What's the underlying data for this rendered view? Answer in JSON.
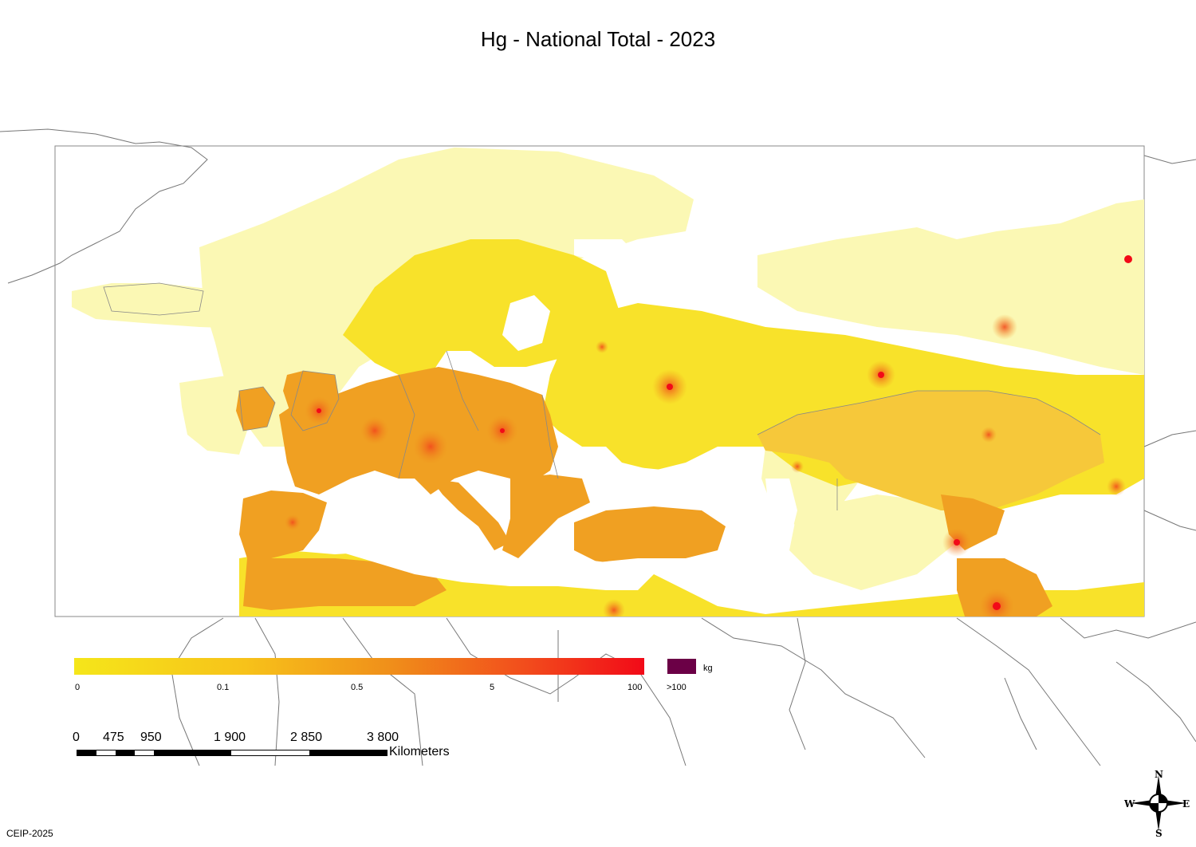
{
  "title": "Hg - National Total - 2023",
  "legend": {
    "ticks": [
      "0",
      "0.1",
      "0.5",
      "5",
      "100"
    ],
    "over_label": ">100",
    "unit": "kg",
    "colors": {
      "low": "#f5e61a",
      "mid": "#f0901a",
      "high": "#f20a18",
      "over": "#6b0046",
      "background_emission": "#fbf8b4"
    }
  },
  "scale_bar": {
    "labels": [
      "0",
      "475",
      "950",
      "1 900",
      "2 850",
      "3 800"
    ],
    "unit": "Kilometers"
  },
  "compass": {
    "n": "N",
    "s": "S",
    "e": "E",
    "w": "W"
  },
  "credit": "CEIP-2025"
}
